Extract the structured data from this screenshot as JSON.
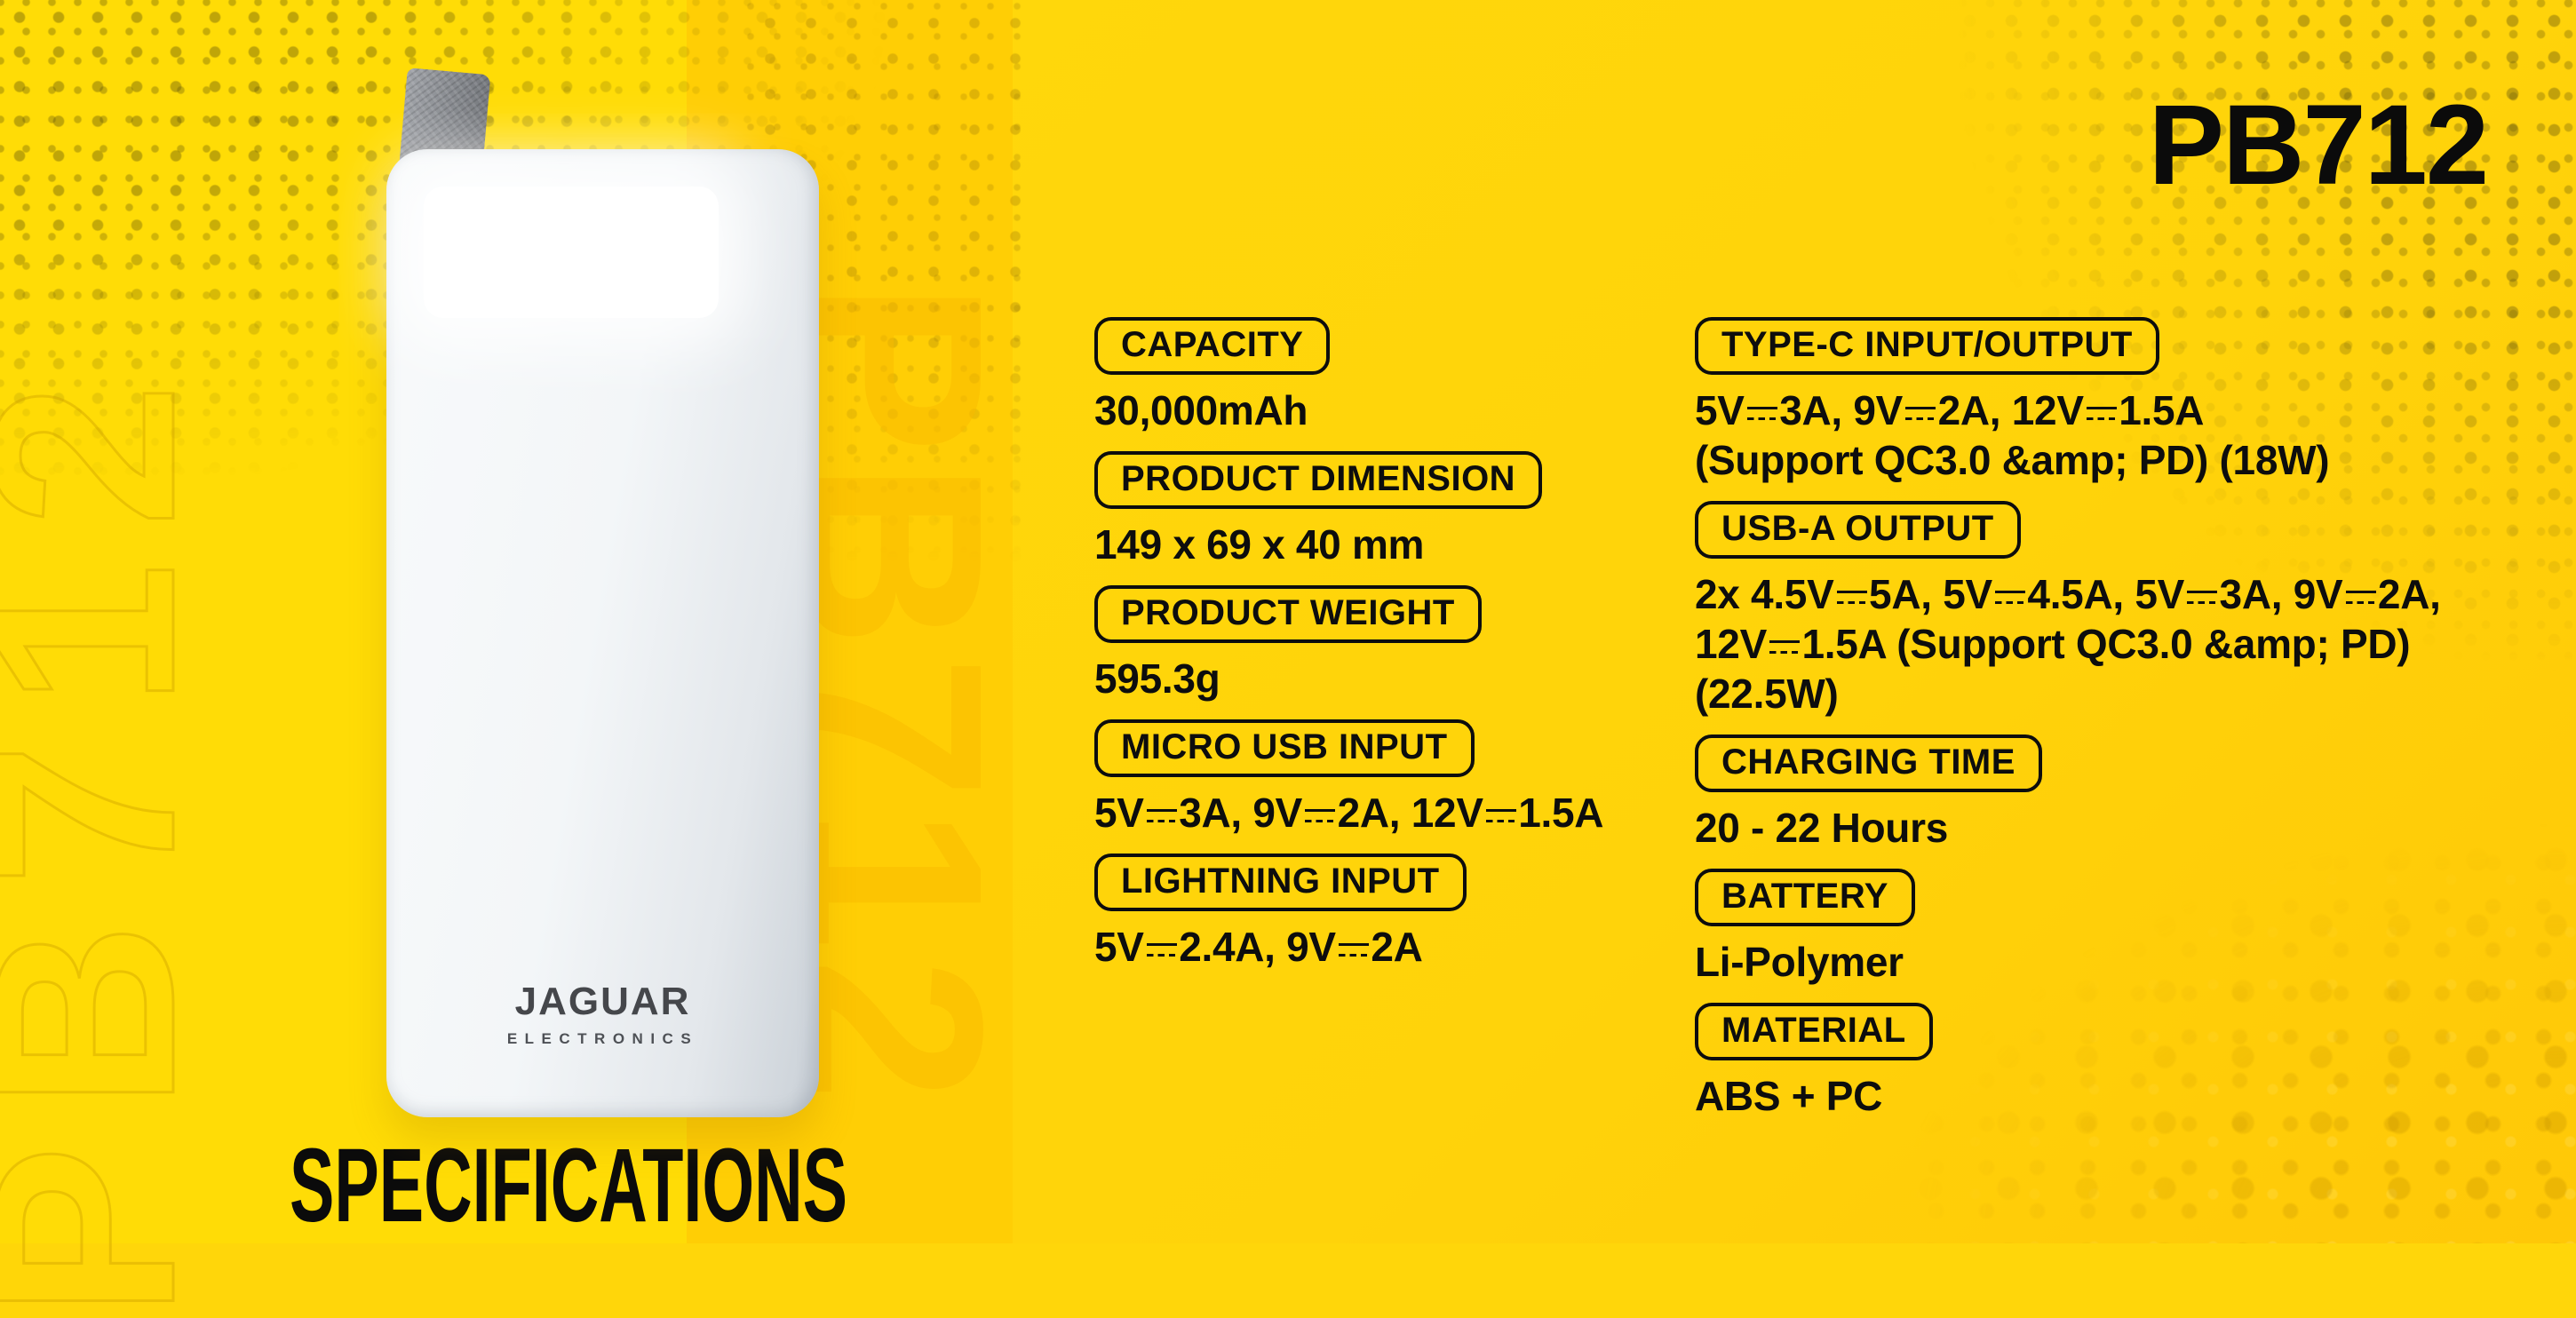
{
  "product": {
    "model": "PB712",
    "brand": "JAGUAR",
    "brand_sub": "ELECTRONICS"
  },
  "heading": "SPECIFICATIONS",
  "watermarks": {
    "outline_text": "PB712",
    "filled_text": "PB712"
  },
  "specs_left": [
    {
      "label": "CAPACITY",
      "value": "30,000mAh"
    },
    {
      "label": "PRODUCT DIMENSION",
      "value": "149 x 69 x 40 mm"
    },
    {
      "label": "PRODUCT WEIGHT",
      "value": "595.3g"
    },
    {
      "label": "MICRO USB INPUT",
      "value": "5V⎓3A, 9V⎓2A, 12V⎓1.5A"
    },
    {
      "label": "LIGHTNING INPUT",
      "value": "5V⎓2.4A, 9V⎓2A"
    }
  ],
  "specs_right": [
    {
      "label": "TYPE-C INPUT/OUTPUT",
      "lines": [
        "5V⎓3A, 9V⎓2A, 12V⎓1.5A",
        "(Support QC3.0 &amp; PD) (18W)"
      ]
    },
    {
      "label": "USB-A OUTPUT",
      "lines": [
        "2x 4.5V⎓5A, 5V⎓4.5A, 5V⎓3A, 9V⎓2A,",
        "12V⎓1.5A (Support QC3.0 &amp; PD)",
        "(22.5W)"
      ]
    },
    {
      "label": "CHARGING TIME",
      "lines": [
        "20 - 22 Hours"
      ]
    },
    {
      "label": "BATTERY",
      "lines": [
        "Li-Polymer"
      ]
    },
    {
      "label": "MATERIAL",
      "lines": [
        "ABS + PC"
      ]
    }
  ],
  "colors": {
    "background_yellow": "#FFD60A",
    "band_bright": "#FFDC06",
    "band_deep": "#FFCE05",
    "text_black": "#0D0D0D",
    "powerbank_body": "#EDF0F3",
    "logo_gray": "#46484C",
    "watermark_orange": "#FAB900"
  }
}
